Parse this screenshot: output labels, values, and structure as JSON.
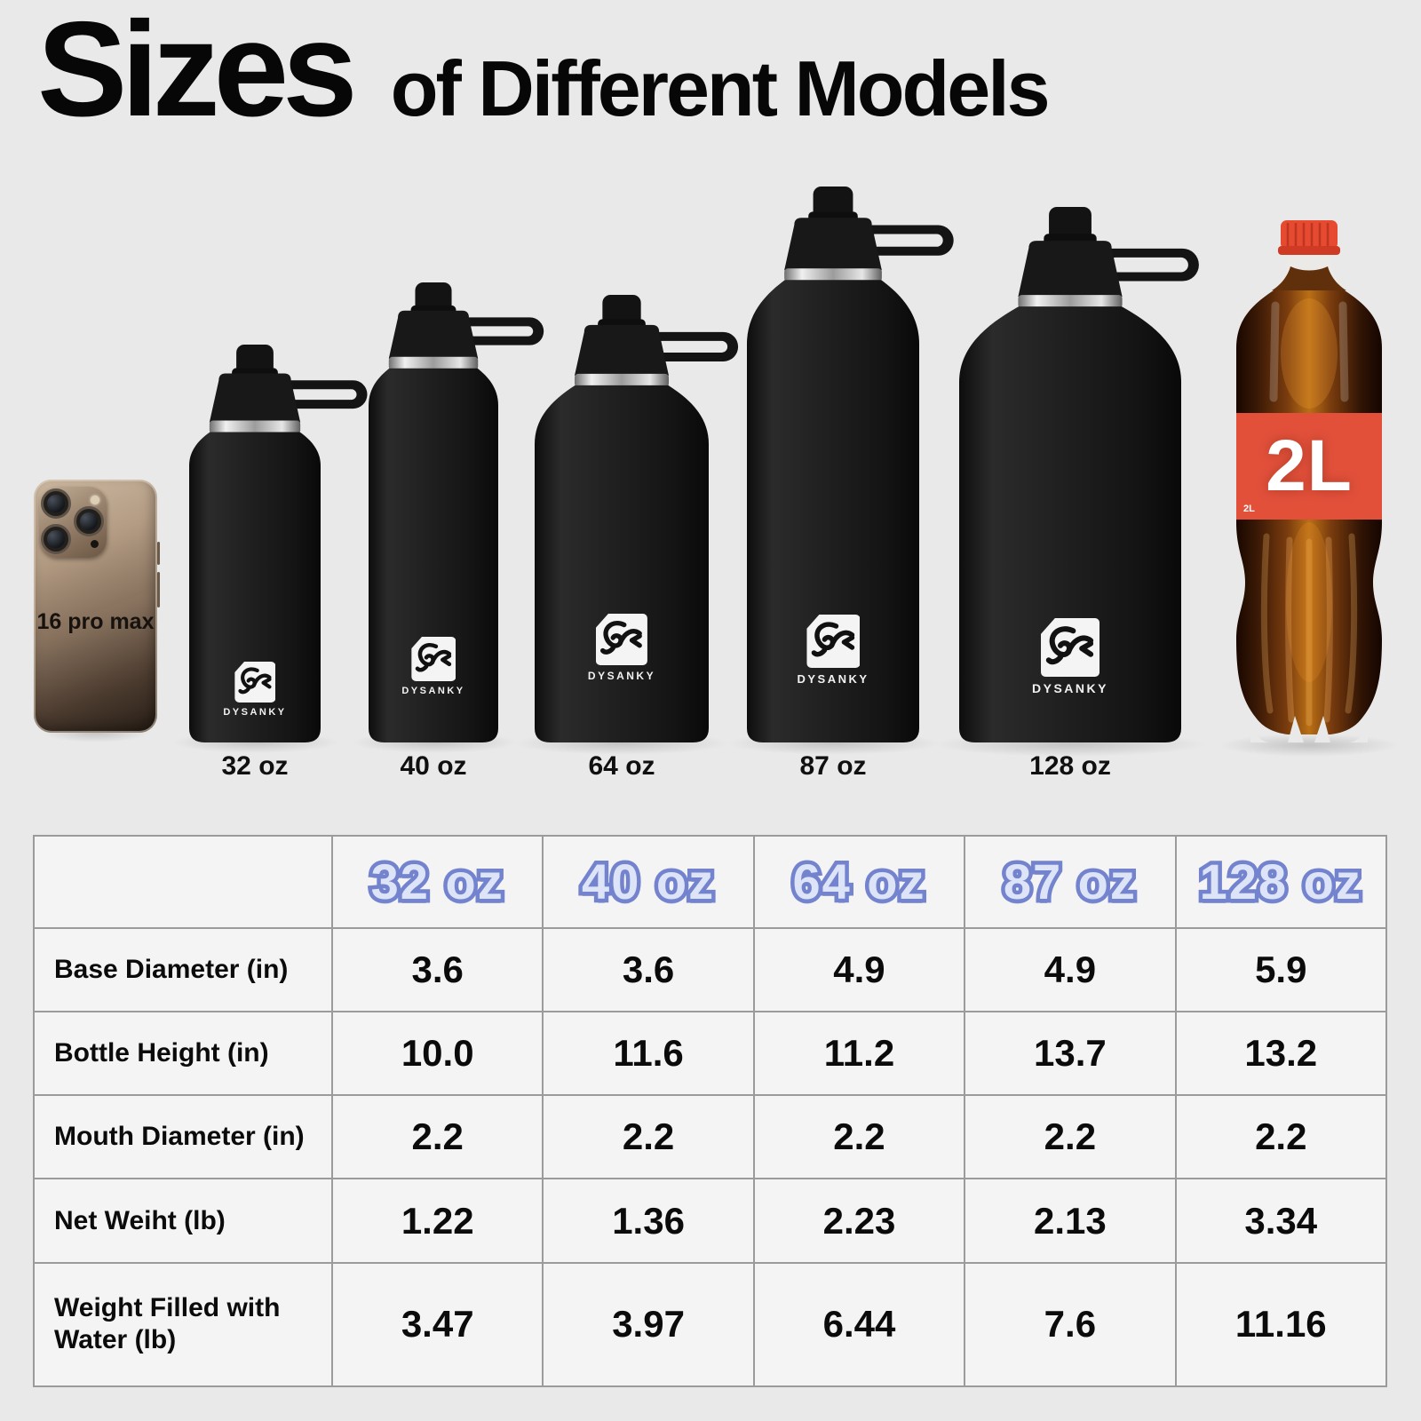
{
  "page": {
    "background": "#e9e9e9"
  },
  "title": {
    "main": "Sizes",
    "rest": "of Different Models"
  },
  "brand": {
    "name": "DYSANKY"
  },
  "phone": {
    "label": "16 pro max"
  },
  "soda": {
    "size_label": "2L",
    "size_label_small": "2L"
  },
  "bottle_labels": [
    "32 oz",
    "40 oz",
    "64 oz",
    "87 oz",
    "128 oz"
  ],
  "comparison_table": {
    "columns": [
      "32 oz",
      "40 oz",
      "64 oz",
      "87 oz",
      "128 oz"
    ],
    "rows": [
      {
        "label": "Base Diameter (in)",
        "values": [
          "3.6",
          "3.6",
          "4.9",
          "4.9",
          "5.9"
        ]
      },
      {
        "label": "Bottle Height (in)",
        "values": [
          "10.0",
          "11.6",
          "11.2",
          "13.7",
          "13.2"
        ]
      },
      {
        "label": "Mouth Diameter (in)",
        "values": [
          "2.2",
          "2.2",
          "2.2",
          "2.2",
          "2.2"
        ]
      },
      {
        "label": "Net Weiht (lb)",
        "values": [
          "1.22",
          "1.36",
          "2.23",
          "2.13",
          "3.34"
        ]
      },
      {
        "label": "Weight Filled with Water (lb)",
        "values": [
          "3.47",
          "3.97",
          "6.44",
          "7.6",
          "11.16"
        ]
      }
    ]
  },
  "chart_data": {
    "type": "table",
    "title": "Sizes of Different Models",
    "categories": [
      "32 oz",
      "40 oz",
      "64 oz",
      "87 oz",
      "128 oz"
    ],
    "series": [
      {
        "name": "Base Diameter (in)",
        "values": [
          3.6,
          3.6,
          4.9,
          4.9,
          5.9
        ]
      },
      {
        "name": "Bottle Height (in)",
        "values": [
          10.0,
          11.6,
          11.2,
          13.7,
          13.2
        ]
      },
      {
        "name": "Mouth Diameter (in)",
        "values": [
          2.2,
          2.2,
          2.2,
          2.2,
          2.2
        ]
      },
      {
        "name": "Net Weiht (lb)",
        "values": [
          1.22,
          1.36,
          2.23,
          2.13,
          3.34
        ]
      },
      {
        "name": "Weight Filled with Water (lb)",
        "values": [
          3.47,
          3.97,
          6.44,
          7.6,
          11.16
        ]
      }
    ]
  },
  "colors": {
    "header_text_fill": "#dde4f8",
    "header_text_stroke": "#7383cd",
    "soda_label_red": "#e2503a",
    "soda_cap_red": "#e64a30",
    "background": "#e9e9e9"
  }
}
